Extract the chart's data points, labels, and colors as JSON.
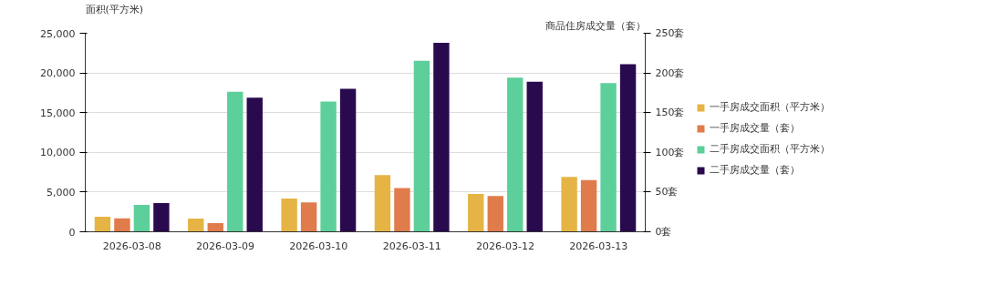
{
  "chart_data": {
    "type": "bar",
    "ylabel": "面积(平方米)",
    "y2label": "商品住房成交量（套）",
    "categories": [
      "2026-03-08",
      "2026-03-09",
      "2026-03-10",
      "2026-03-11",
      "2026-03-12",
      "2026-03-13"
    ],
    "series": [
      {
        "name": "一手房成交面积（平方米）",
        "color": "#e6b445",
        "values": [
          1900,
          1670,
          4180,
          7140,
          4750,
          6900
        ]
      },
      {
        "name": "一手房成交量（套）",
        "color": "#e07b4b",
        "axis": "y2",
        "values": [
          17,
          11,
          37,
          55,
          45,
          65
        ]
      },
      {
        "name": "二手房成交面积（平方米）",
        "color": "#5ccf9a",
        "values": [
          3380,
          17630,
          16410,
          21540,
          19410,
          18730
        ]
      },
      {
        "name": "二手房成交量（套）",
        "color": "#2a0a4e",
        "axis": "y2",
        "values": [
          36,
          169,
          180,
          238,
          189,
          211
        ]
      }
    ],
    "ylim": [
      0,
      25000
    ],
    "yticks": [
      0,
      {
        "value": 5000,
        "label": "5,000"
      },
      {
        "value": 10000,
        "label": "10,000"
      },
      {
        "value": 15000,
        "label": "15,000"
      },
      {
        "value": 20000,
        "label": "20,000"
      },
      {
        "value": 25000,
        "label": "25,000"
      }
    ],
    "y2lim": [
      0,
      250
    ],
    "y2ticks": [
      {
        "value": 0,
        "label": "0套"
      },
      {
        "value": 50,
        "label": "50套"
      },
      {
        "value": 100,
        "label": "100套"
      },
      {
        "value": 150,
        "label": "150套"
      },
      {
        "value": 200,
        "label": "200套"
      },
      {
        "value": 250,
        "label": "250套"
      }
    ],
    "grid": "y",
    "legend": "right"
  }
}
